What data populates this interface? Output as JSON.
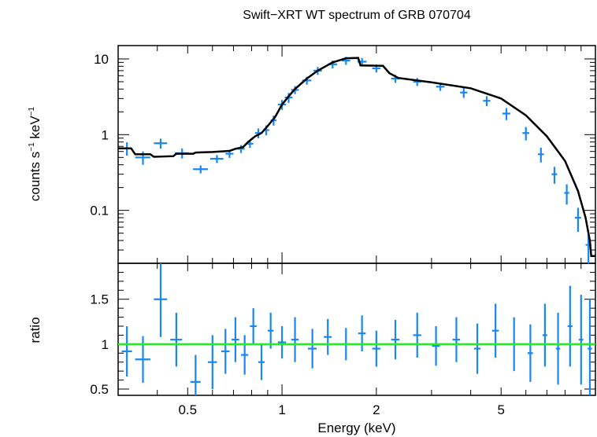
{
  "chart_data": [
    {
      "type": "scatter",
      "panel": "spectrum",
      "title": "Swift−XRT WT spectrum of GRB 070704",
      "xlabel": "Energy (keV)",
      "ylabel_main": "counts s",
      "ylabel_sup1": "−1",
      "ylabel_mid": " keV",
      "ylabel_sup2": "−1",
      "x_scale": "log",
      "y_scale": "log",
      "xlim": [
        0.3,
        10
      ],
      "ylim": [
        0.02,
        15
      ],
      "yticks": [
        {
          "v": 0.1,
          "label": "0.1"
        },
        {
          "v": 1,
          "label": "1"
        },
        {
          "v": 10,
          "label": "10"
        }
      ],
      "grid": false,
      "colors": {
        "data": "#1a86f0",
        "model": "#000000"
      },
      "data_points": [
        [
          0.32,
          0.012,
          0.66,
          0.2
        ],
        [
          0.36,
          0.02,
          0.5,
          0.2
        ],
        [
          0.41,
          0.02,
          0.77,
          0.15
        ],
        [
          0.48,
          0.025,
          0.57,
          0.15
        ],
        [
          0.55,
          0.03,
          0.35,
          0.12
        ],
        [
          0.62,
          0.03,
          0.48,
          0.12
        ],
        [
          0.68,
          0.02,
          0.56,
          0.12
        ],
        [
          0.74,
          0.02,
          0.65,
          0.12
        ],
        [
          0.79,
          0.02,
          0.76,
          0.12
        ],
        [
          0.84,
          0.02,
          1.05,
          0.15
        ],
        [
          0.89,
          0.02,
          1.15,
          0.15
        ],
        [
          0.94,
          0.02,
          1.55,
          0.15
        ],
        [
          1.0,
          0.03,
          2.5,
          0.15
        ],
        [
          1.05,
          0.03,
          3.1,
          0.15
        ],
        [
          1.1,
          0.03,
          3.9,
          0.12
        ],
        [
          1.2,
          0.04,
          5.2,
          0.12
        ],
        [
          1.3,
          0.04,
          7.0,
          0.12
        ],
        [
          1.45,
          0.05,
          8.5,
          0.12
        ],
        [
          1.6,
          0.05,
          9.5,
          0.12
        ],
        [
          1.8,
          0.06,
          9.2,
          0.12
        ],
        [
          2.0,
          0.06,
          7.5,
          0.12
        ],
        [
          2.3,
          0.07,
          5.5,
          0.12
        ],
        [
          2.7,
          0.08,
          5.0,
          0.12
        ],
        [
          3.2,
          0.1,
          4.3,
          0.12
        ],
        [
          3.8,
          0.1,
          3.6,
          0.15
        ],
        [
          4.5,
          0.12,
          2.8,
          0.15
        ],
        [
          5.2,
          0.15,
          1.9,
          0.18
        ],
        [
          6.0,
          0.15,
          1.05,
          0.2
        ],
        [
          6.7,
          0.15,
          0.55,
          0.22
        ],
        [
          7.4,
          0.15,
          0.3,
          0.25
        ],
        [
          8.1,
          0.15,
          0.17,
          0.3
        ],
        [
          8.8,
          0.2,
          0.08,
          0.35
        ],
        [
          9.5,
          0.2,
          0.035,
          0.45
        ]
      ],
      "model": [
        [
          0.3,
          0.66
        ],
        [
          0.33,
          0.66
        ],
        [
          0.34,
          0.55
        ],
        [
          0.38,
          0.55
        ],
        [
          0.39,
          0.51
        ],
        [
          0.45,
          0.52
        ],
        [
          0.46,
          0.56
        ],
        [
          0.52,
          0.56
        ],
        [
          0.53,
          0.58
        ],
        [
          0.6,
          0.59
        ],
        [
          0.68,
          0.61
        ],
        [
          0.71,
          0.65
        ],
        [
          0.75,
          0.68
        ],
        [
          0.78,
          0.8
        ],
        [
          0.82,
          0.95
        ],
        [
          0.86,
          1.05
        ],
        [
          0.9,
          1.3
        ],
        [
          0.95,
          1.7
        ],
        [
          1.0,
          2.5
        ],
        [
          1.05,
          3.2
        ],
        [
          1.1,
          4.0
        ],
        [
          1.2,
          5.5
        ],
        [
          1.3,
          7.0
        ],
        [
          1.45,
          9.0
        ],
        [
          1.6,
          10.2
        ],
        [
          1.75,
          10.3
        ],
        [
          1.78,
          8.2
        ],
        [
          2.1,
          8.1
        ],
        [
          2.2,
          6.5
        ],
        [
          2.35,
          5.6
        ],
        [
          3.0,
          4.9
        ],
        [
          4.0,
          4.1
        ],
        [
          5.0,
          3.0
        ],
        [
          6.0,
          1.8
        ],
        [
          7.0,
          0.95
        ],
        [
          8.0,
          0.45
        ],
        [
          8.8,
          0.18
        ],
        [
          9.3,
          0.08
        ],
        [
          9.6,
          0.04
        ],
        [
          9.7,
          0.025
        ],
        [
          10.0,
          0.025
        ]
      ]
    },
    {
      "type": "scatter",
      "panel": "ratio",
      "xlabel": "Energy (keV)",
      "ylabel": "ratio",
      "x_scale": "log",
      "y_scale": "linear",
      "xlim": [
        0.3,
        10
      ],
      "ylim": [
        0.43,
        1.9
      ],
      "xticks": [
        {
          "v": 0.5,
          "label": "0.5"
        },
        {
          "v": 1,
          "label": "1"
        },
        {
          "v": 2,
          "label": "2"
        },
        {
          "v": 5,
          "label": "5"
        }
      ],
      "yticks": [
        {
          "v": 0.5,
          "label": "0.5"
        },
        {
          "v": 1,
          "label": "1"
        },
        {
          "v": 1.5,
          "label": "1.5"
        }
      ],
      "reference_line": 1.0,
      "grid": false,
      "colors": {
        "data": "#1a86f0",
        "reference": "#22ee22"
      },
      "data_points": [
        [
          0.32,
          0.012,
          0.92,
          0.28
        ],
        [
          0.36,
          0.02,
          0.83,
          0.26
        ],
        [
          0.41,
          0.02,
          1.5,
          0.42
        ],
        [
          0.46,
          0.02,
          1.05,
          0.3
        ],
        [
          0.53,
          0.02,
          0.58,
          0.3
        ],
        [
          0.6,
          0.02,
          0.8,
          0.3
        ],
        [
          0.66,
          0.02,
          0.92,
          0.25
        ],
        [
          0.71,
          0.02,
          1.05,
          0.25
        ],
        [
          0.76,
          0.02,
          0.88,
          0.22
        ],
        [
          0.81,
          0.02,
          1.2,
          0.2
        ],
        [
          0.86,
          0.02,
          0.8,
          0.2
        ],
        [
          0.92,
          0.02,
          1.15,
          0.2
        ],
        [
          1.0,
          0.03,
          1.02,
          0.18
        ],
        [
          1.1,
          0.03,
          1.05,
          0.25
        ],
        [
          1.25,
          0.04,
          0.95,
          0.22
        ],
        [
          1.4,
          0.04,
          1.08,
          0.2
        ],
        [
          1.6,
          0.05,
          1.0,
          0.18
        ],
        [
          1.8,
          0.05,
          1.12,
          0.2
        ],
        [
          2.0,
          0.06,
          0.95,
          0.2
        ],
        [
          2.3,
          0.07,
          1.05,
          0.22
        ],
        [
          2.7,
          0.08,
          1.1,
          0.25
        ],
        [
          3.1,
          0.09,
          0.98,
          0.22
        ],
        [
          3.6,
          0.1,
          1.05,
          0.25
        ],
        [
          4.2,
          0.1,
          0.95,
          0.28
        ],
        [
          4.8,
          0.12,
          1.15,
          0.3
        ],
        [
          5.5,
          0.12,
          1.0,
          0.3
        ],
        [
          6.2,
          0.12,
          0.9,
          0.32
        ],
        [
          6.9,
          0.12,
          1.1,
          0.35
        ],
        [
          7.6,
          0.12,
          0.95,
          0.4
        ],
        [
          8.3,
          0.15,
          1.2,
          0.45
        ],
        [
          9.0,
          0.15,
          1.05,
          0.5
        ],
        [
          9.6,
          0.15,
          0.95,
          0.55
        ]
      ]
    }
  ]
}
